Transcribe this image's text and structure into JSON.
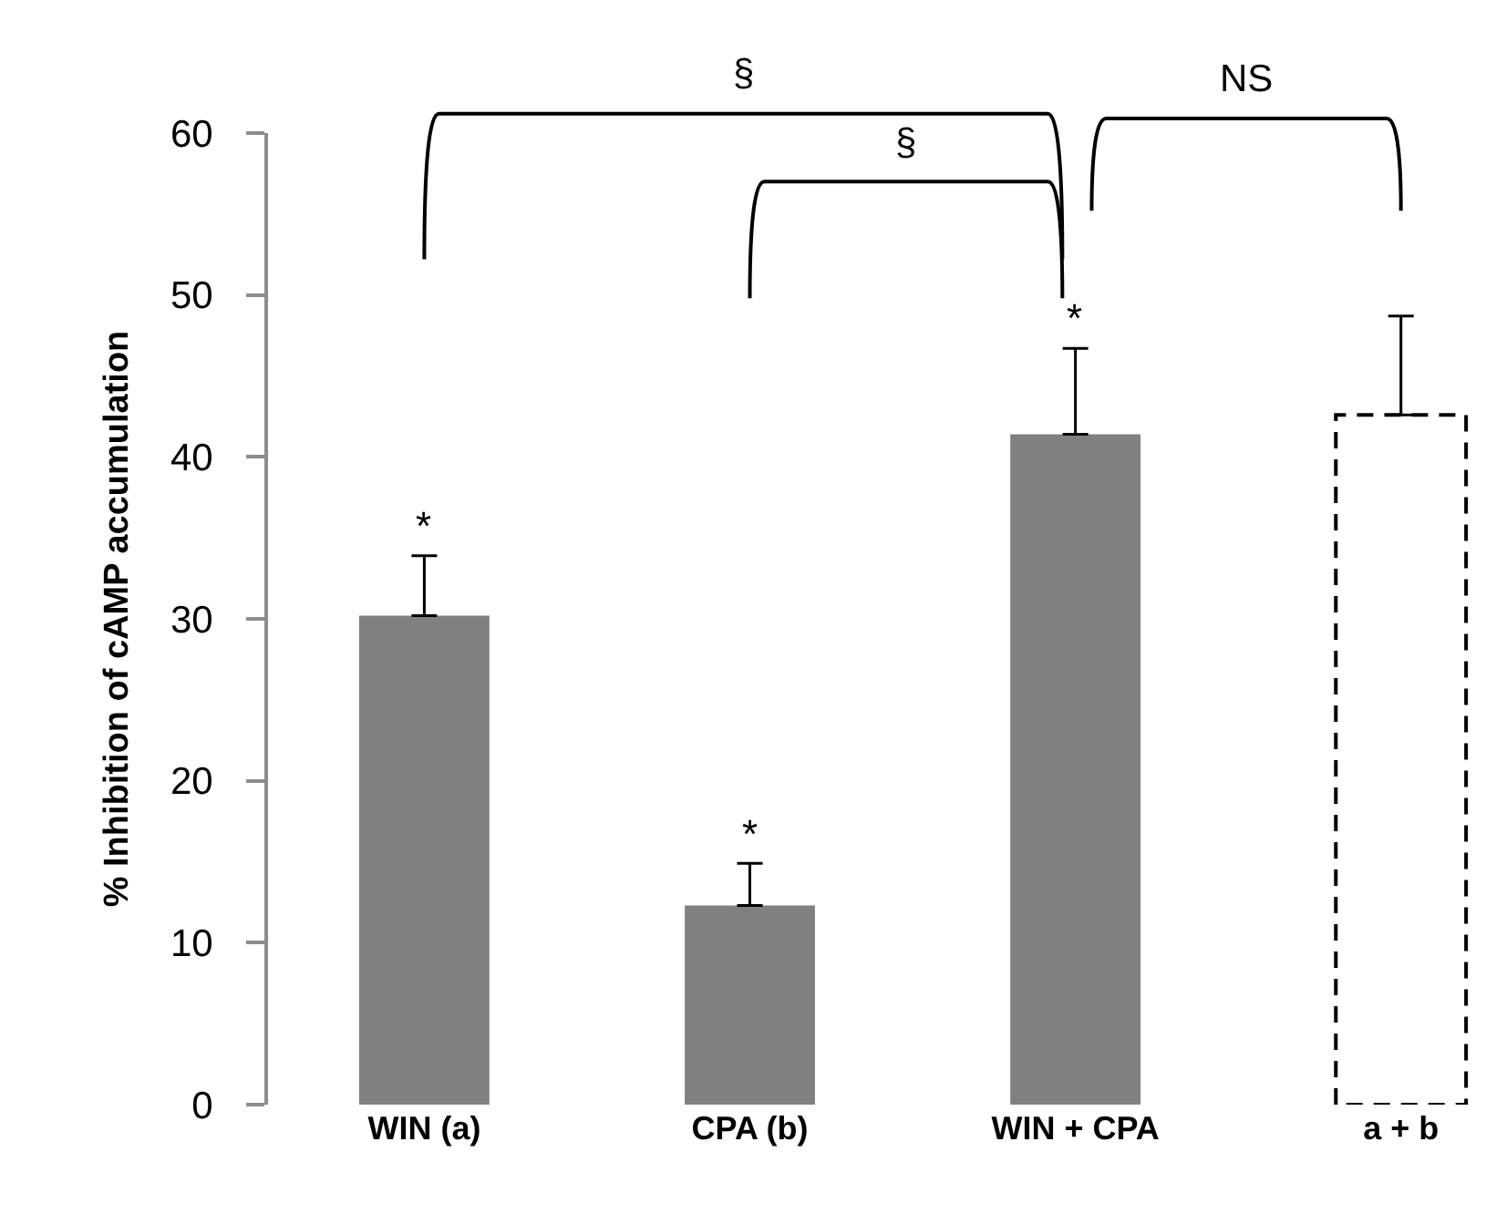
{
  "chart_data": {
    "type": "bar",
    "ylabel": "% Inhibition of cAMP accumulation",
    "categories": [
      "WIN (a)",
      "CPA (b)",
      "WIN + CPA",
      "a + b"
    ],
    "series": [
      {
        "color": "#808080",
        "values": [
          30.2,
          12.3,
          41.4,
          null
        ],
        "errors": [
          [
            30.2,
            33.9
          ],
          [
            12.3,
            14.9
          ],
          [
            41.4,
            46.7
          ],
          null
        ]
      },
      {
        "color": "#ffffff",
        "line_style": "dashed",
        "values": [
          null,
          null,
          null,
          42.6
        ],
        "errors": [
          null,
          null,
          null,
          [
            42.6,
            48.7
          ]
        ]
      }
    ],
    "ylim": [
      0,
      60
    ],
    "yticks": [
      0,
      10,
      20,
      30,
      40,
      50,
      60
    ],
    "grid": false,
    "annotations": [
      "*",
      "*",
      "*",
      "§",
      "§",
      "NS"
    ]
  }
}
